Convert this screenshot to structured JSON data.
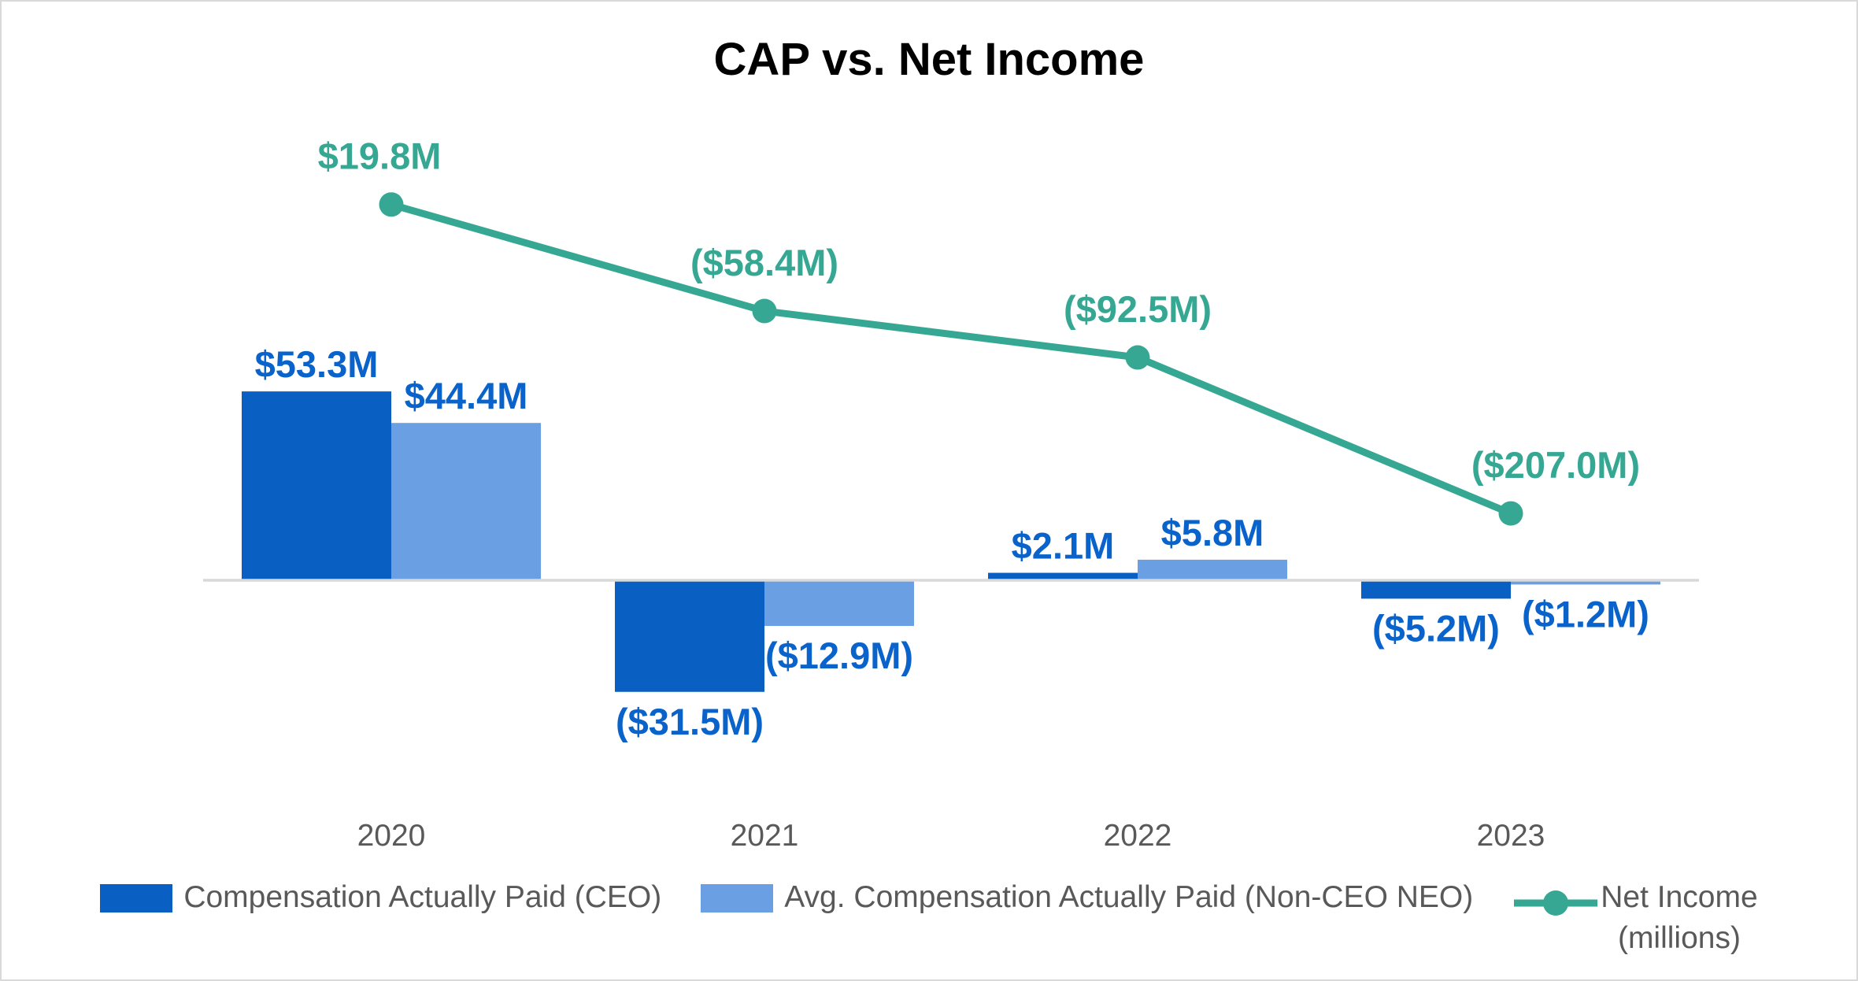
{
  "title": "CAP vs. Net Income",
  "colors": {
    "ceo_bar": "#0A60C2",
    "neo_bar": "#6B9FE4",
    "net_income": "#35A792",
    "bar_label": "#0A63CB",
    "axis_line": "#D9D9D9",
    "axis_text": "#595959",
    "legend_text": "#595959",
    "title_text": "#000000",
    "background": "#FFFFFF",
    "border": "#D9D9D9"
  },
  "legend": {
    "items": [
      {
        "label": "Compensation Actually Paid (CEO)",
        "type": "bar-swatch",
        "color_key": "ceo_bar"
      },
      {
        "label": "Avg. Compensation Actually Paid (Non-CEO NEO)",
        "type": "bar-swatch",
        "color_key": "neo_bar"
      },
      {
        "label": "Net Income",
        "label_line2": "(millions)",
        "type": "line-marker-swatch",
        "color_key": "net_income"
      }
    ]
  },
  "chart_data": {
    "type": "bar",
    "subtype": "combo bar + line, dual axis",
    "title": "CAP vs. Net Income",
    "categories": [
      "2020",
      "2021",
      "2022",
      "2023"
    ],
    "series": [
      {
        "name": "Compensation Actually Paid (CEO)",
        "type": "bar",
        "axis": "primary",
        "values": [
          53.3,
          -31.5,
          2.1,
          -5.2
        ],
        "labels": [
          "$53.3M",
          "($31.5M)",
          "$2.1M",
          "($5.2M)"
        ]
      },
      {
        "name": "Avg. Compensation Actually Paid (Non-CEO NEO)",
        "type": "bar",
        "axis": "primary",
        "values": [
          44.4,
          -12.9,
          5.8,
          -1.2
        ],
        "labels": [
          "$44.4M",
          "($12.9M)",
          "$5.8M",
          "($1.2M)"
        ]
      },
      {
        "name": "Net Income (millions)",
        "type": "line",
        "axis": "secondary",
        "values": [
          19.8,
          -58.4,
          -92.5,
          -207.0
        ],
        "labels": [
          "$19.8M",
          "($58.4M)",
          "($92.5M)",
          "($207.0M)"
        ]
      }
    ],
    "units": "USD millions",
    "gridlines": false,
    "value_axes_visible": false,
    "legend_position": "bottom",
    "data_labels": "outside end / above points"
  }
}
